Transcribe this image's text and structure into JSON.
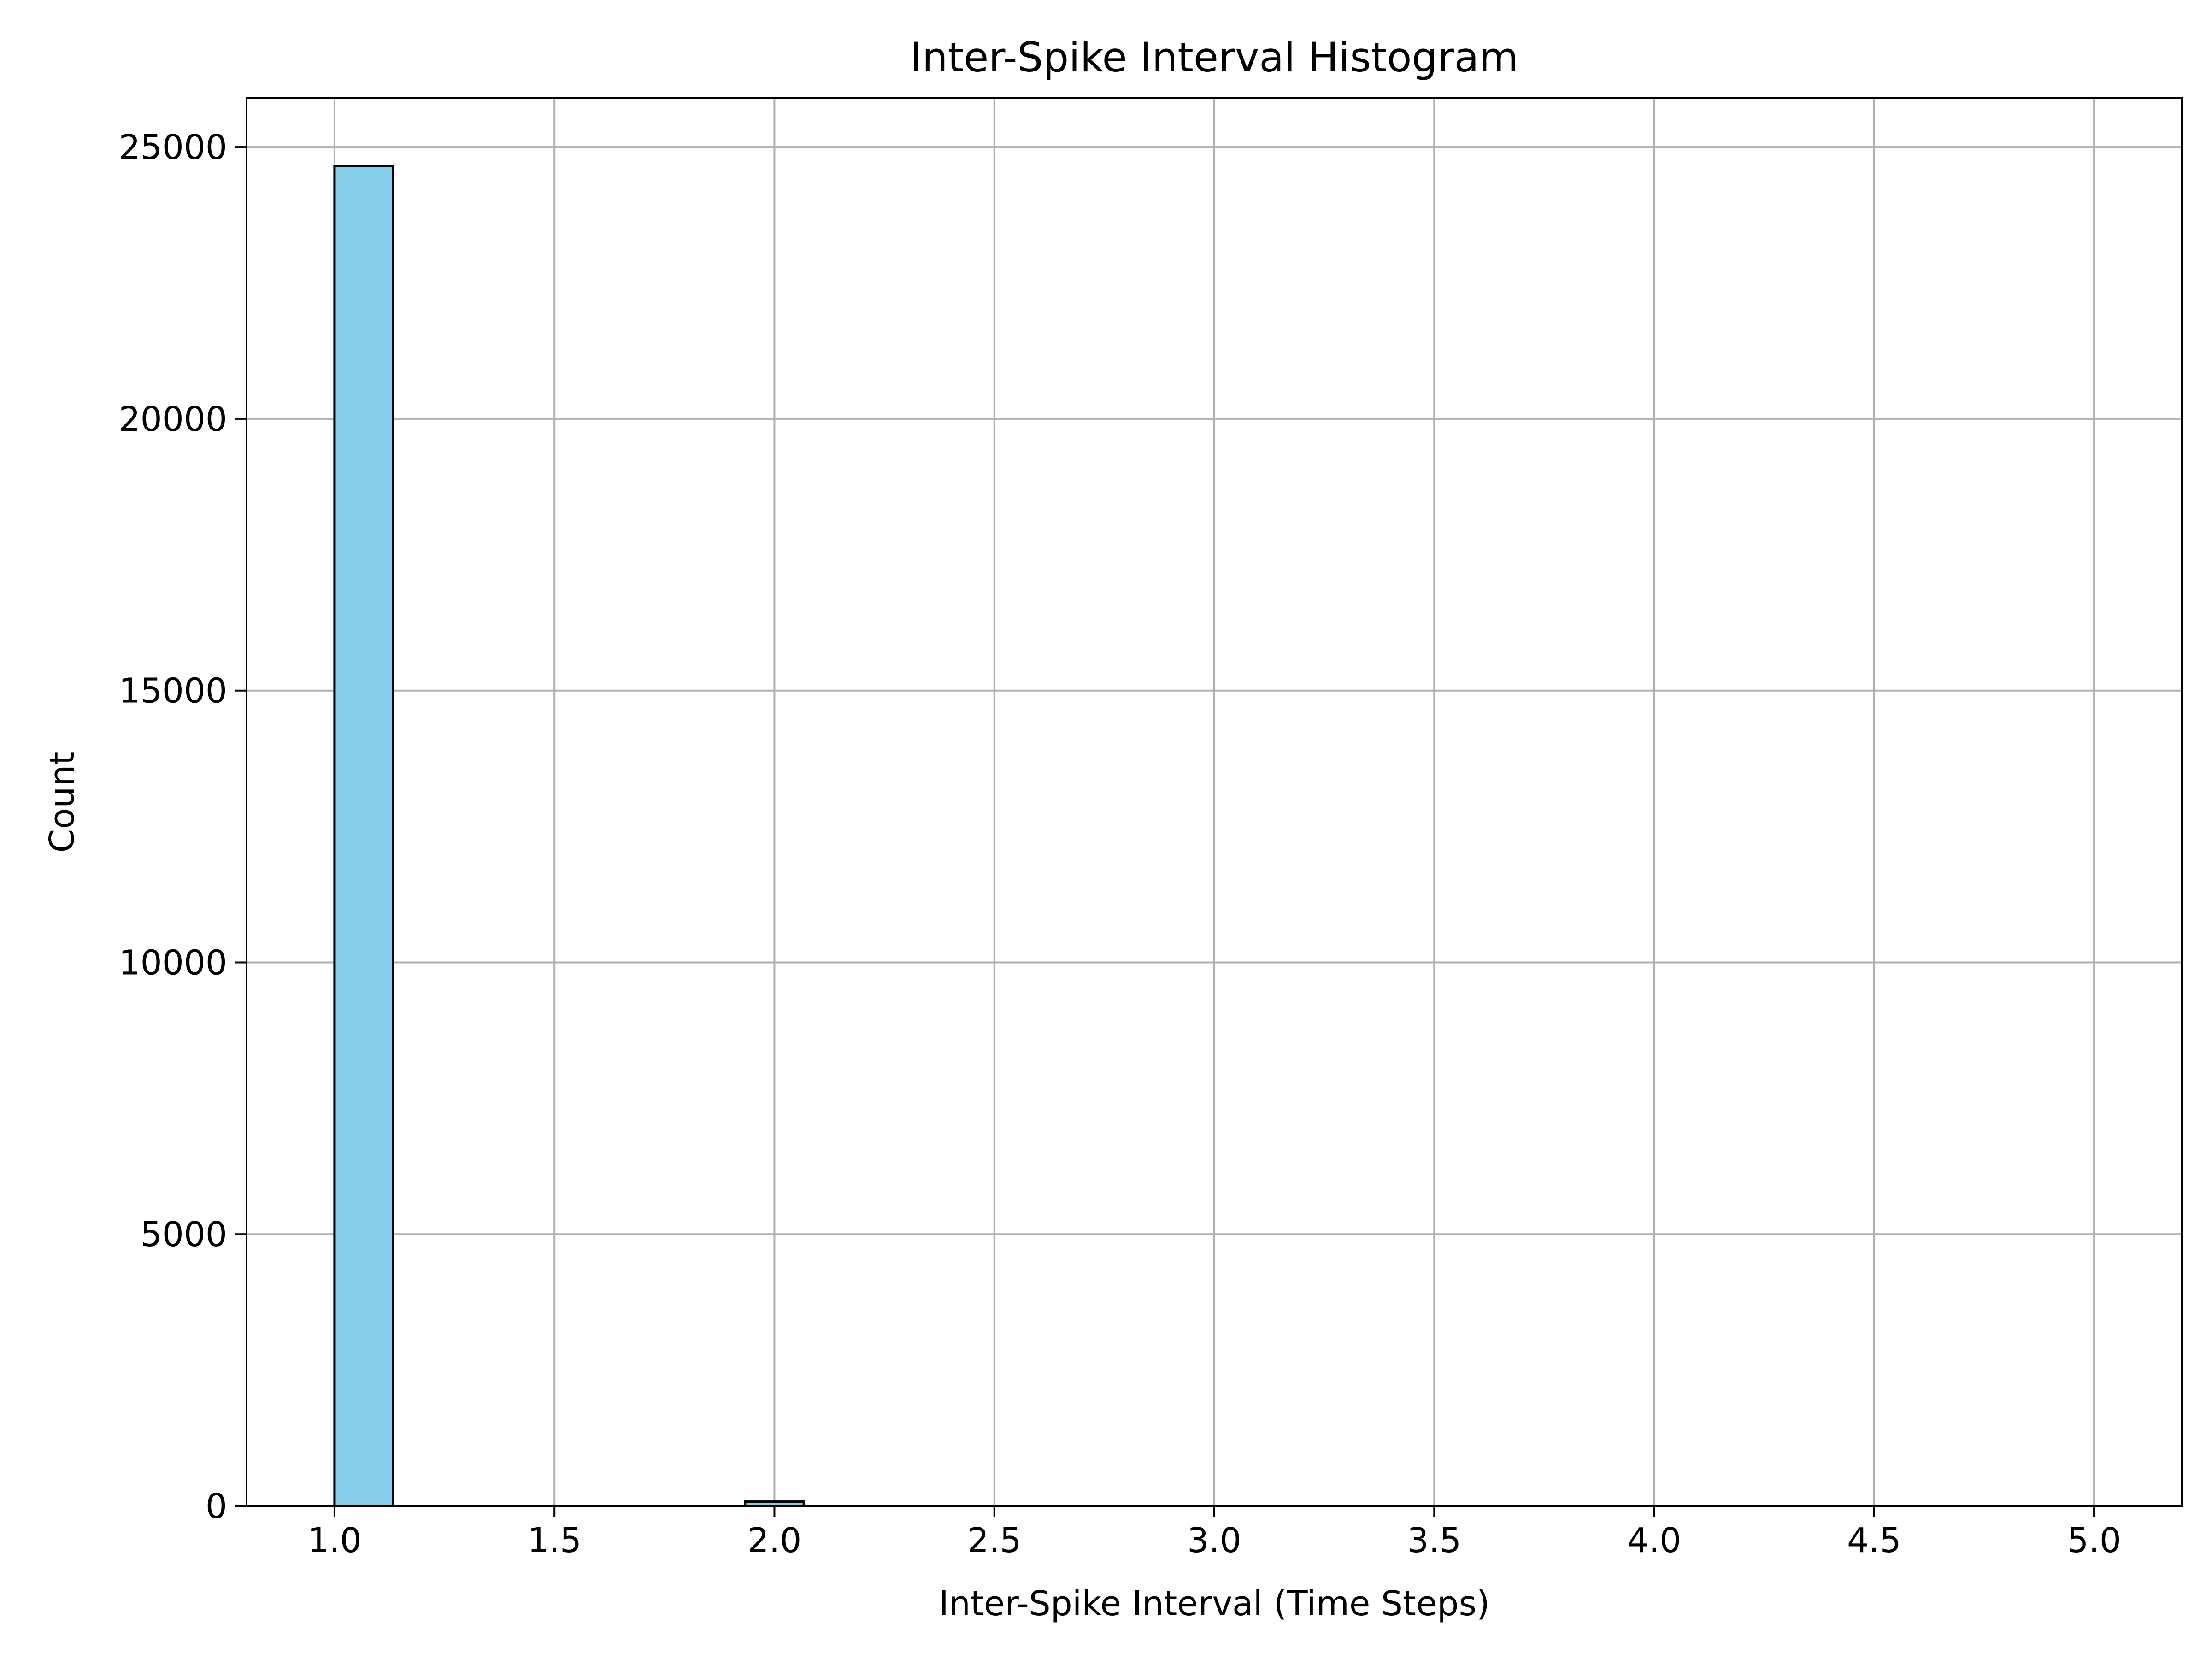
{
  "chart_data": {
    "type": "bar",
    "title": "Inter-Spike Interval Histogram",
    "xlabel": "Inter-Spike Interval (Time Steps)",
    "ylabel": "Count",
    "xlim": [
      0.8,
      5.2
    ],
    "ylim": [
      0,
      25900
    ],
    "xticks": [
      "1.0",
      "1.5",
      "2.0",
      "2.5",
      "3.0",
      "3.5",
      "4.0",
      "4.5",
      "5.0"
    ],
    "xtick_values": [
      1.0,
      1.5,
      2.0,
      2.5,
      3.0,
      3.5,
      4.0,
      4.5,
      5.0
    ],
    "yticks": [
      "0",
      "5000",
      "10000",
      "15000",
      "20000",
      "25000"
    ],
    "ytick_values": [
      0,
      5000,
      10000,
      15000,
      20000,
      25000
    ],
    "grid": true,
    "bins": [
      {
        "x0": 1.0,
        "x1": 1.1333,
        "count": 24650
      },
      {
        "x0": 1.9333,
        "x1": 2.0667,
        "count": 80
      }
    ],
    "colors": {
      "bar_fill": "#87ceeb",
      "bar_edge": "#000000",
      "grid": "#b0b0b0",
      "axis": "#000000"
    }
  }
}
